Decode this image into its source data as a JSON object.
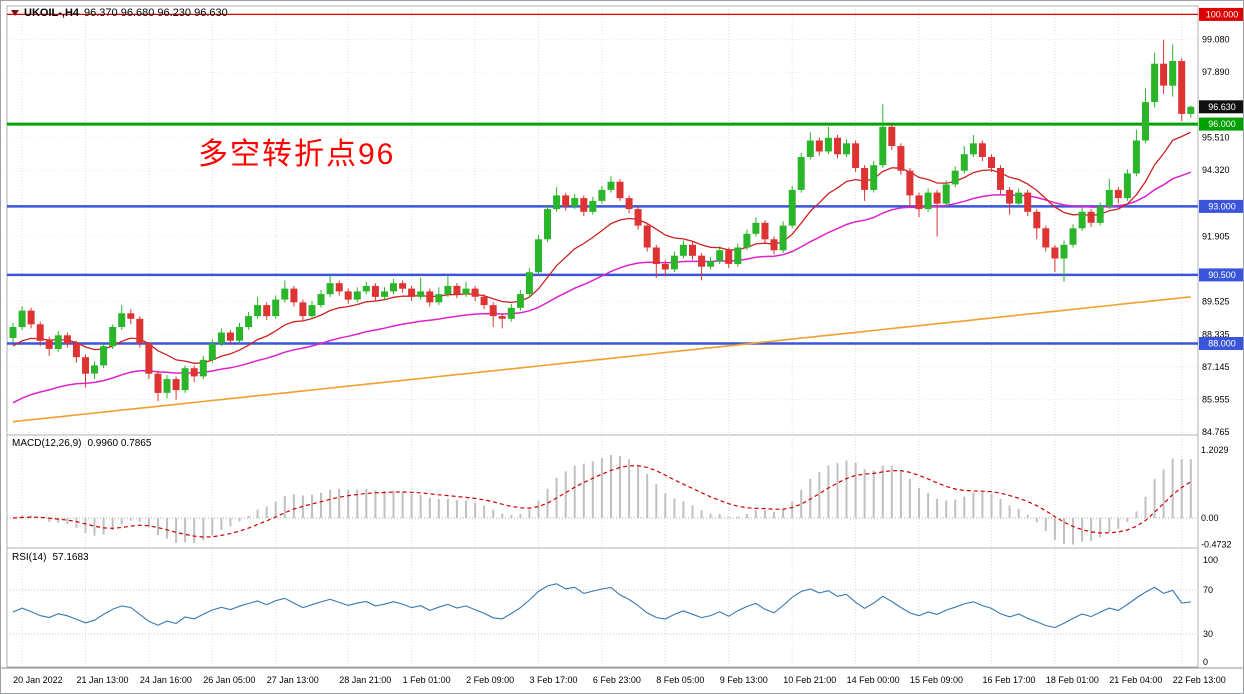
{
  "header": {
    "symbol_timeframe": "UKOIL-,H4",
    "ohlc_text": "96.370 96.680 96.230 96.630"
  },
  "annotation": {
    "text": "多空转折点96",
    "color": "#ff0000"
  },
  "panels": {
    "macd": {
      "label": "MACD(12,26,9)",
      "values": "0.9960 0.7865",
      "scale": [
        {
          "text": "1.2029",
          "value": 1.2029
        },
        {
          "text": "0.00",
          "value": 0
        },
        {
          "text": "-0.4732",
          "value": -0.4732
        }
      ]
    },
    "rsi": {
      "label": "RSI(14)",
      "value": "57.1683",
      "levels": [
        70,
        30
      ],
      "scale": [
        {
          "text": "100",
          "value": 100
        },
        {
          "text": "70",
          "value": 70
        },
        {
          "text": "30",
          "value": 30
        },
        {
          "text": "0",
          "value": 0
        }
      ]
    }
  },
  "chart_data": {
    "type": "candlestick",
    "symbol": "UKOIL",
    "timeframe": "H4",
    "title": "UKOIL-,H4 96.370 96.680 96.230 96.630",
    "current_ohlc": {
      "open": 96.37,
      "high": 96.68,
      "low": 96.23,
      "close": 96.63
    },
    "ylim": [
      84.7,
      100.05
    ],
    "colors": {
      "bull": "#2ab52a",
      "bear": "#dd3333",
      "ma_fast": "#cc2222",
      "ma_mid": "#dd22cc",
      "ma_long": "#f0a030",
      "line_green": "#00a000",
      "line_blue": "#3a55d9",
      "line_red": "#dd0000",
      "macd_hist": "#c0c0c0",
      "macd_signal": "#cc0000",
      "rsi_line": "#3878b4"
    },
    "y_ticks": [
      {
        "text": "99.080",
        "value": 99.08
      },
      {
        "text": "97.890",
        "value": 97.89
      },
      {
        "text": "95.510",
        "value": 95.51
      },
      {
        "text": "94.320",
        "value": 94.32
      },
      {
        "text": "91.905",
        "value": 91.905
      },
      {
        "text": "89.525",
        "value": 89.525
      },
      {
        "text": "88.335",
        "value": 88.335
      },
      {
        "text": "87.145",
        "value": 87.145
      },
      {
        "text": "85.955",
        "value": 85.955
      },
      {
        "text": "84.765",
        "value": 84.765
      }
    ],
    "price_badges": [
      {
        "text": "100.000",
        "value": 100.0,
        "color": "#dd0000"
      },
      {
        "text": "96.630",
        "value": 96.63,
        "color": "#111111"
      },
      {
        "text": "96.000",
        "value": 96.0,
        "color": "#00a000"
      },
      {
        "text": "93.000",
        "value": 93.0,
        "color": "#3a55d9"
      },
      {
        "text": "90.500",
        "value": 90.5,
        "color": "#3a55d9"
      },
      {
        "text": "88.000",
        "value": 88.0,
        "color": "#3a55d9"
      }
    ],
    "hlines": [
      {
        "price": 100.0,
        "color": "#dd0000",
        "w": 1.2
      },
      {
        "price": 96.0,
        "color": "#00a000",
        "w": 3
      },
      {
        "price": 93.0,
        "color": "#3a55d9",
        "w": 2.5
      },
      {
        "price": 90.5,
        "color": "#3a55d9",
        "w": 2.5
      },
      {
        "price": 88.0,
        "color": "#3a55d9",
        "w": 2.5
      }
    ],
    "x_labels": [
      {
        "text": "20 Jan 2022",
        "index": 1
      },
      {
        "text": "21 Jan 13:00",
        "index": 8
      },
      {
        "text": "24 Jan 16:00",
        "index": 15
      },
      {
        "text": "26 Jan 05:00",
        "index": 22
      },
      {
        "text": "27 Jan 13:00",
        "index": 29
      },
      {
        "text": "28 Jan 21:00",
        "index": 37
      },
      {
        "text": "1 Feb 01:00",
        "index": 44
      },
      {
        "text": "2 Feb 09:00",
        "index": 51
      },
      {
        "text": "3 Feb 17:00",
        "index": 58
      },
      {
        "text": "6 Feb 23:00",
        "index": 65
      },
      {
        "text": "8 Feb 05:00",
        "index": 72
      },
      {
        "text": "9 Feb 13:00",
        "index": 79
      },
      {
        "text": "10 Feb 21:00",
        "index": 86
      },
      {
        "text": "14 Feb 00:00",
        "index": 93
      },
      {
        "text": "15 Feb 09:00",
        "index": 100
      },
      {
        "text": "16 Feb 17:00",
        "index": 108
      },
      {
        "text": "18 Feb 01:00",
        "index": 115
      },
      {
        "text": "21 Feb 04:00",
        "index": 122
      },
      {
        "text": "22 Feb 13:00",
        "index": 129
      }
    ],
    "indicators": {
      "ma_fast": {
        "type": "ema",
        "period": 13,
        "seed": 87.8
      },
      "ma_mid": {
        "type": "ema",
        "period": 40,
        "seed": 85.7
      },
      "ma_long": {
        "type": "trend",
        "start": 85.15,
        "end": 89.7
      },
      "macd": {
        "fast": 12,
        "slow": 26,
        "signal": 9
      },
      "rsi": {
        "period": 14
      }
    },
    "candles": [
      [
        88.2,
        88.75,
        88.05,
        88.6
      ],
      [
        88.6,
        89.35,
        88.5,
        89.2
      ],
      [
        89.2,
        89.3,
        88.55,
        88.7
      ],
      [
        88.7,
        88.8,
        87.9,
        88.1
      ],
      [
        88.1,
        88.25,
        87.55,
        87.8
      ],
      [
        87.8,
        88.45,
        87.7,
        88.3
      ],
      [
        88.3,
        88.4,
        87.85,
        88.0
      ],
      [
        88.0,
        88.1,
        87.3,
        87.5
      ],
      [
        87.5,
        87.6,
        86.4,
        86.9
      ],
      [
        86.9,
        87.35,
        86.7,
        87.2
      ],
      [
        87.2,
        88.0,
        87.1,
        87.9
      ],
      [
        87.9,
        88.7,
        87.8,
        88.6
      ],
      [
        88.6,
        89.4,
        88.5,
        89.1
      ],
      [
        89.1,
        89.25,
        88.7,
        88.9
      ],
      [
        88.9,
        89.0,
        87.85,
        88.0
      ],
      [
        88.0,
        88.05,
        86.7,
        86.9
      ],
      [
        86.9,
        87.0,
        85.9,
        86.2
      ],
      [
        86.2,
        86.85,
        86.0,
        86.7
      ],
      [
        86.7,
        86.8,
        85.95,
        86.3
      ],
      [
        86.3,
        87.2,
        86.2,
        87.1
      ],
      [
        87.1,
        87.2,
        86.6,
        86.8
      ],
      [
        86.8,
        87.55,
        86.7,
        87.4
      ],
      [
        87.4,
        88.15,
        87.3,
        88.0
      ],
      [
        88.0,
        88.55,
        87.9,
        88.4
      ],
      [
        88.4,
        88.5,
        87.95,
        88.1
      ],
      [
        88.1,
        88.75,
        88.0,
        88.6
      ],
      [
        88.6,
        89.15,
        88.5,
        89.0
      ],
      [
        89.0,
        89.7,
        88.9,
        89.4
      ],
      [
        89.4,
        89.5,
        88.85,
        89.0
      ],
      [
        89.0,
        89.75,
        88.9,
        89.6
      ],
      [
        89.6,
        90.3,
        89.5,
        90.0
      ],
      [
        90.0,
        90.1,
        89.35,
        89.5
      ],
      [
        89.5,
        89.6,
        88.85,
        89.0
      ],
      [
        89.0,
        89.55,
        88.9,
        89.4
      ],
      [
        89.4,
        89.95,
        89.3,
        89.8
      ],
      [
        89.8,
        90.5,
        89.7,
        90.2
      ],
      [
        90.2,
        90.3,
        89.75,
        89.9
      ],
      [
        89.9,
        90.0,
        89.45,
        89.6
      ],
      [
        89.6,
        90.05,
        89.5,
        89.9
      ],
      [
        89.9,
        90.25,
        89.8,
        90.1
      ],
      [
        90.1,
        90.2,
        89.55,
        89.7
      ],
      [
        89.7,
        90.05,
        89.6,
        89.9
      ],
      [
        89.9,
        90.35,
        89.8,
        90.2
      ],
      [
        90.2,
        90.3,
        89.85,
        90.0
      ],
      [
        90.0,
        90.1,
        89.55,
        89.7
      ],
      [
        89.7,
        90.4,
        89.6,
        89.9
      ],
      [
        89.9,
        90.0,
        89.35,
        89.5
      ],
      [
        89.5,
        90.05,
        89.4,
        89.8
      ],
      [
        89.8,
        90.45,
        89.7,
        90.1
      ],
      [
        90.1,
        90.2,
        89.65,
        89.8
      ],
      [
        89.8,
        90.25,
        89.7,
        90.0
      ],
      [
        90.0,
        90.1,
        89.55,
        89.7
      ],
      [
        89.7,
        89.8,
        89.25,
        89.4
      ],
      [
        89.4,
        89.5,
        88.6,
        89.0
      ],
      [
        89.0,
        89.1,
        88.55,
        88.9
      ],
      [
        88.9,
        89.45,
        88.8,
        89.3
      ],
      [
        89.3,
        89.95,
        89.2,
        89.8
      ],
      [
        89.8,
        90.75,
        89.7,
        90.6
      ],
      [
        90.6,
        91.95,
        90.5,
        91.8
      ],
      [
        91.8,
        93.05,
        91.7,
        92.9
      ],
      [
        92.9,
        93.7,
        92.8,
        93.4
      ],
      [
        93.4,
        93.5,
        92.85,
        93.0
      ],
      [
        93.0,
        93.45,
        92.9,
        93.3
      ],
      [
        93.3,
        93.4,
        92.65,
        92.8
      ],
      [
        92.8,
        93.35,
        92.7,
        93.2
      ],
      [
        93.2,
        93.75,
        93.1,
        93.6
      ],
      [
        93.6,
        94.1,
        93.5,
        93.9
      ],
      [
        93.9,
        94.0,
        93.2,
        93.3
      ],
      [
        93.3,
        93.4,
        92.75,
        92.9
      ],
      [
        92.9,
        93.0,
        92.15,
        92.3
      ],
      [
        92.3,
        92.4,
        91.35,
        91.5
      ],
      [
        91.5,
        91.6,
        90.4,
        90.9
      ],
      [
        90.9,
        91.05,
        90.45,
        90.7
      ],
      [
        90.7,
        91.35,
        90.6,
        91.2
      ],
      [
        91.2,
        91.75,
        91.1,
        91.6
      ],
      [
        91.6,
        91.7,
        91.05,
        91.2
      ],
      [
        91.2,
        91.3,
        90.3,
        90.8
      ],
      [
        90.8,
        91.15,
        90.7,
        91.0
      ],
      [
        91.0,
        91.55,
        90.9,
        91.4
      ],
      [
        91.4,
        91.5,
        90.75,
        90.9
      ],
      [
        90.9,
        91.65,
        90.8,
        91.5
      ],
      [
        91.5,
        92.15,
        91.4,
        92.0
      ],
      [
        92.0,
        92.6,
        91.9,
        92.4
      ],
      [
        92.4,
        92.5,
        91.65,
        91.8
      ],
      [
        91.8,
        91.9,
        91.25,
        91.4
      ],
      [
        91.4,
        92.45,
        91.3,
        92.3
      ],
      [
        92.3,
        93.75,
        92.2,
        93.6
      ],
      [
        93.6,
        94.95,
        93.5,
        94.8
      ],
      [
        94.8,
        95.7,
        94.7,
        95.4
      ],
      [
        95.4,
        95.5,
        94.85,
        95.0
      ],
      [
        95.0,
        95.9,
        94.9,
        95.5
      ],
      [
        95.5,
        95.6,
        94.75,
        94.9
      ],
      [
        94.9,
        95.45,
        94.8,
        95.3
      ],
      [
        95.3,
        95.4,
        94.25,
        94.4
      ],
      [
        94.4,
        94.5,
        93.2,
        93.6
      ],
      [
        93.6,
        94.65,
        93.5,
        94.5
      ],
      [
        94.5,
        96.72,
        94.4,
        95.9
      ],
      [
        95.9,
        96.0,
        95.05,
        95.2
      ],
      [
        95.2,
        95.3,
        94.15,
        94.3
      ],
      [
        94.3,
        94.4,
        92.95,
        93.4
      ],
      [
        93.4,
        93.5,
        92.6,
        92.9
      ],
      [
        92.9,
        93.65,
        92.8,
        93.5
      ],
      [
        93.5,
        93.6,
        91.9,
        93.1
      ],
      [
        93.1,
        93.95,
        93.0,
        93.8
      ],
      [
        93.8,
        94.45,
        93.7,
        94.3
      ],
      [
        94.3,
        95.2,
        94.2,
        94.9
      ],
      [
        94.9,
        95.6,
        94.8,
        95.3
      ],
      [
        95.3,
        95.4,
        94.65,
        94.8
      ],
      [
        94.8,
        94.9,
        94.25,
        94.4
      ],
      [
        94.4,
        94.5,
        93.45,
        93.6
      ],
      [
        93.6,
        93.7,
        92.7,
        93.1
      ],
      [
        93.1,
        93.65,
        93.0,
        93.5
      ],
      [
        93.5,
        93.6,
        92.65,
        92.8
      ],
      [
        92.8,
        92.9,
        91.8,
        92.2
      ],
      [
        92.2,
        92.3,
        91.35,
        91.5
      ],
      [
        91.5,
        91.6,
        90.6,
        91.1
      ],
      [
        91.1,
        91.75,
        90.25,
        91.6
      ],
      [
        91.6,
        92.35,
        91.5,
        92.2
      ],
      [
        92.2,
        92.95,
        92.1,
        92.8
      ],
      [
        92.8,
        92.9,
        92.25,
        92.4
      ],
      [
        92.4,
        93.15,
        92.3,
        93.0
      ],
      [
        93.0,
        94.0,
        92.9,
        93.6
      ],
      [
        93.6,
        93.7,
        93.1,
        93.3
      ],
      [
        93.3,
        94.35,
        93.2,
        94.2
      ],
      [
        94.2,
        95.8,
        94.1,
        95.4
      ],
      [
        95.4,
        97.3,
        95.3,
        96.8
      ],
      [
        96.8,
        98.6,
        96.6,
        98.2
      ],
      [
        98.2,
        99.08,
        97.1,
        97.4
      ],
      [
        97.4,
        98.9,
        97.0,
        98.3
      ],
      [
        98.3,
        98.4,
        96.1,
        96.37
      ],
      [
        96.37,
        96.68,
        96.23,
        96.63
      ]
    ]
  }
}
